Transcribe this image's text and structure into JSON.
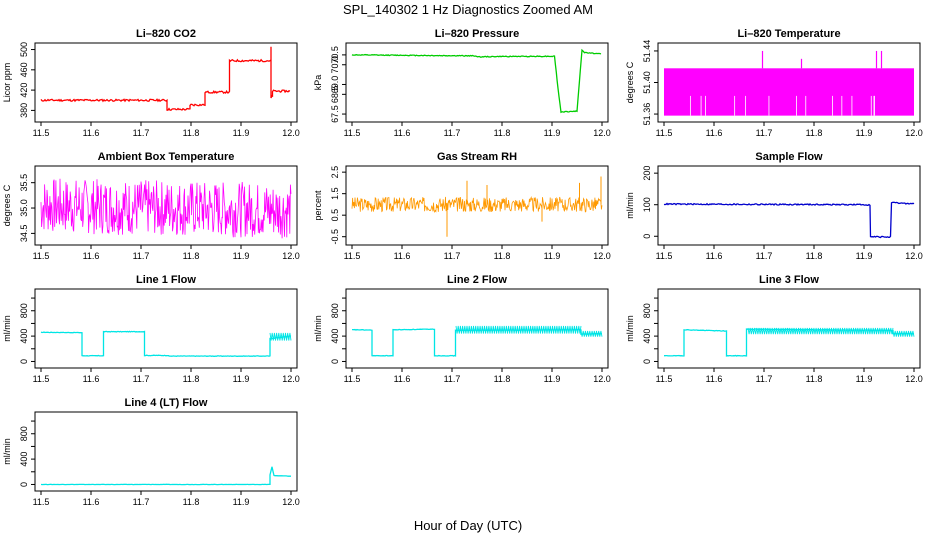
{
  "page": {
    "title": "SPL_140302  1 Hz Diagnostics Zoomed AM",
    "xlabel": "Hour of Day (UTC)"
  },
  "chart_data": [
    {
      "id": "co2",
      "type": "line",
      "title": "Li–820 CO2",
      "ylabel": "Licor ppm",
      "color": "#ff0000",
      "noise": 2,
      "xlim": [
        11.5,
        12.0
      ],
      "ylim": [
        365,
        505
      ],
      "xticks": [
        11.5,
        11.6,
        11.7,
        11.8,
        11.9,
        12.0
      ],
      "yticks": [
        380,
        420,
        460,
        500
      ],
      "ytick_labels": [
        "380",
        "420",
        "460",
        "500"
      ],
      "x": [
        11.5,
        11.752,
        11.752,
        11.752,
        11.798,
        11.798,
        11.798,
        11.828,
        11.828,
        11.828,
        11.877,
        11.877,
        11.877,
        11.96,
        11.96,
        11.96,
        11.963,
        11.963,
        11.963,
        11.998
      ],
      "y": [
        400,
        400,
        380,
        382,
        382,
        385,
        391,
        391,
        413,
        416,
        416,
        476,
        478,
        478,
        505,
        404,
        409,
        406,
        418,
        418
      ]
    },
    {
      "id": "pressure",
      "type": "line",
      "title": "Li–820 Pressure",
      "ylabel": "kPa",
      "color": "#00cc00",
      "noise": 0.02,
      "xlim": [
        11.5,
        12.0
      ],
      "ylim": [
        67.3,
        70.9
      ],
      "xticks": [
        11.5,
        11.6,
        11.7,
        11.8,
        11.9,
        12.0
      ],
      "yticks": [
        67.5,
        68.5,
        69.0,
        70.0,
        70.5
      ],
      "ytick_labels": [
        "67.5",
        "68.5",
        "69.0",
        "70.0",
        "70.5"
      ],
      "x": [
        11.5,
        11.745,
        11.755,
        11.8,
        11.905,
        11.912,
        11.918,
        11.95,
        11.955,
        11.96,
        11.965,
        11.998
      ],
      "y": [
        70.5,
        70.45,
        70.4,
        70.42,
        70.43,
        68.8,
        67.6,
        67.65,
        69.2,
        70.75,
        70.62,
        70.55
      ]
    },
    {
      "id": "li_temp",
      "type": "band",
      "title": "Li–820 Temperature",
      "ylabel": "degrees C",
      "color": "#ff00ff",
      "xlim": [
        11.5,
        12.0
      ],
      "ylim": [
        51.355,
        51.445
      ],
      "xticks": [
        11.5,
        11.6,
        11.7,
        11.8,
        11.9,
        12.0
      ],
      "yticks": [
        51.36,
        51.4,
        51.44
      ],
      "ytick_labels": [
        "51.36",
        "51.40",
        "51.44"
      ],
      "band": [
        51.358,
        51.418
      ],
      "band_x": [
        11.5,
        12.0
      ],
      "spikes": [
        [
          11.697,
          51.44
        ],
        [
          11.775,
          51.43
        ],
        [
          11.925,
          51.44
        ],
        [
          11.935,
          51.44
        ]
      ]
    },
    {
      "id": "ambient",
      "type": "noise",
      "title": "Ambient Box Temperature",
      "ylabel": "degrees C",
      "color": "#ff00ff",
      "xlim": [
        11.5,
        12.0
      ],
      "ylim": [
        34.35,
        35.75
      ],
      "xticks": [
        11.5,
        11.6,
        11.7,
        11.8,
        11.9,
        12.0
      ],
      "yticks": [
        34.5,
        35.0,
        35.5
      ],
      "ytick_labels": [
        "34.5",
        "35.0",
        "35.5"
      ],
      "center": [
        35.05,
        34.95
      ],
      "amp": 0.55,
      "seed": 7,
      "count": 420
    },
    {
      "id": "rh",
      "type": "noise",
      "title": "Gas Stream RH",
      "ylabel": "percent",
      "color": "#ff9900",
      "xlim": [
        11.5,
        12.0
      ],
      "ylim": [
        -0.7,
        2.6
      ],
      "xticks": [
        11.5,
        11.6,
        11.7,
        11.8,
        11.9,
        12.0
      ],
      "yticks": [
        -0.5,
        0.5,
        1.5,
        2.5
      ],
      "ytick_labels": [
        "-0.5",
        "0.5",
        "1.5",
        "2.5"
      ],
      "center": [
        1.0,
        1.0
      ],
      "amp": 0.35,
      "seed": 3,
      "count": 420,
      "spikes": [
        [
          11.69,
          -0.5
        ],
        [
          11.73,
          2.1
        ],
        [
          11.77,
          1.9
        ],
        [
          11.88,
          0.2
        ],
        [
          11.955,
          2.0
        ],
        [
          11.998,
          2.3
        ]
      ]
    },
    {
      "id": "sample",
      "type": "line",
      "title": "Sample Flow",
      "ylabel": "ml/min",
      "color": "#0000cc",
      "noise": 2,
      "xlim": [
        11.5,
        12.0
      ],
      "ylim": [
        -15,
        210
      ],
      "xticks": [
        11.5,
        11.6,
        11.7,
        11.8,
        11.9,
        12.0
      ],
      "yticks": [
        0,
        100,
        200
      ],
      "ytick_labels": [
        "0",
        "100",
        "200"
      ],
      "x": [
        11.5,
        11.912,
        11.913,
        11.953,
        11.955,
        12.0
      ],
      "y": [
        102,
        100,
        -2,
        -2,
        106,
        103
      ]
    },
    {
      "id": "line1",
      "type": "line",
      "title": "Line 1 Flow",
      "ylabel": "ml/min",
      "color": "#00e5e5",
      "noise": 4,
      "xlim": [
        11.5,
        12.0
      ],
      "ylim": [
        -40,
        1080
      ],
      "xticks": [
        11.5,
        11.6,
        11.7,
        11.8,
        11.9,
        12.0
      ],
      "yticks": [
        0,
        200,
        400,
        600,
        800,
        1000
      ],
      "ytick_labels": [
        "0",
        "",
        "400",
        "",
        "800",
        ""
      ],
      "x": [
        11.5,
        11.582,
        11.582,
        11.625,
        11.625,
        11.707,
        11.707,
        11.755,
        11.755,
        11.958,
        11.958,
        12.0
      ],
      "y": [
        460,
        455,
        90,
        90,
        470,
        470,
        95,
        95,
        85,
        85,
        360,
        400
      ],
      "hatch": [
        [
          11.958,
          12.0,
          330,
          450
        ]
      ]
    },
    {
      "id": "line2",
      "type": "line",
      "title": "Line 2 Flow",
      "ylabel": "ml/min",
      "color": "#00e5e5",
      "noise": 4,
      "xlim": [
        11.5,
        12.0
      ],
      "ylim": [
        -40,
        1080
      ],
      "xticks": [
        11.5,
        11.6,
        11.7,
        11.8,
        11.9,
        12.0
      ],
      "yticks": [
        0,
        200,
        400,
        600,
        800,
        1000
      ],
      "ytick_labels": [
        "0",
        "",
        "400",
        "",
        "800",
        ""
      ],
      "x": [
        11.5,
        11.54,
        11.54,
        11.582,
        11.582,
        11.665,
        11.665,
        11.707,
        11.707,
        11.958,
        11.958,
        12.0
      ],
      "y": [
        500,
        495,
        90,
        90,
        500,
        510,
        90,
        90,
        490,
        500,
        430,
        440
      ],
      "hatch": [
        [
          11.708,
          11.958,
          440,
          560
        ],
        [
          11.958,
          12.0,
          390,
          480
        ]
      ]
    },
    {
      "id": "line3",
      "type": "line",
      "title": "Line 3 Flow",
      "ylabel": "ml/min",
      "color": "#00e5e5",
      "noise": 4,
      "xlim": [
        11.5,
        12.0
      ],
      "ylim": [
        -40,
        1080
      ],
      "xticks": [
        11.5,
        11.6,
        11.7,
        11.8,
        11.9,
        12.0
      ],
      "yticks": [
        0,
        200,
        400,
        600,
        800,
        1000
      ],
      "ytick_labels": [
        "0",
        "",
        "400",
        "",
        "800",
        ""
      ],
      "x": [
        11.5,
        11.54,
        11.54,
        11.625,
        11.625,
        11.665,
        11.665,
        11.958,
        11.958,
        12.0
      ],
      "y": [
        90,
        90,
        500,
        480,
        90,
        90,
        510,
        490,
        440,
        440
      ],
      "hatch": [
        [
          11.668,
          11.958,
          430,
          530
        ],
        [
          11.958,
          12.0,
          390,
          480
        ]
      ]
    },
    {
      "id": "line4",
      "type": "line",
      "title": "Line 4 (LT) Flow",
      "ylabel": "ml/min",
      "color": "#00e5e5",
      "noise": 2,
      "xlim": [
        11.5,
        12.0
      ],
      "ylim": [
        -40,
        1080
      ],
      "xticks": [
        11.5,
        11.6,
        11.7,
        11.8,
        11.9,
        12.0
      ],
      "yticks": [
        0,
        200,
        400,
        600,
        800,
        1000
      ],
      "ytick_labels": [
        "0",
        "",
        "400",
        "",
        "800",
        ""
      ],
      "x": [
        11.5,
        11.958,
        11.958,
        11.962,
        11.966,
        12.0
      ],
      "y": [
        0,
        0,
        150,
        280,
        140,
        130
      ]
    }
  ]
}
